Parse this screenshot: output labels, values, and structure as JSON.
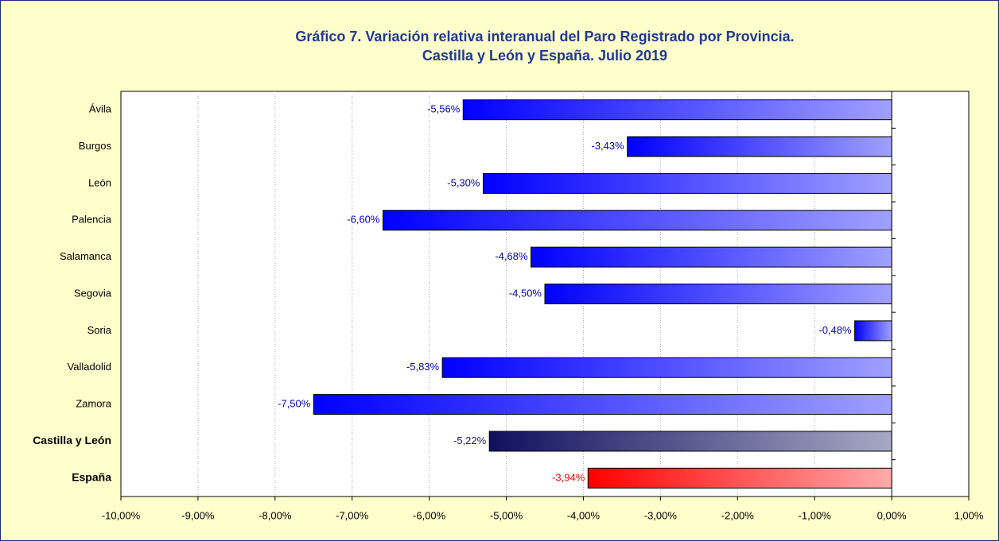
{
  "chart_data": {
    "type": "bar",
    "orientation": "horizontal",
    "title": [
      "Gráfico 7. Variación relativa interanual del Paro Registrado por Provincia.",
      "Castilla y León y España. Julio 2019"
    ],
    "categories": [
      "Ávila",
      "Burgos",
      "León",
      "Palencia",
      "Salamanca",
      "Segovia",
      "Soria",
      "Valladolid",
      "Zamora",
      "Castilla y León",
      "España"
    ],
    "values": [
      -5.56,
      -3.43,
      -5.3,
      -6.6,
      -4.68,
      -4.5,
      -0.48,
      -5.83,
      -7.5,
      -5.22,
      -3.94
    ],
    "value_labels": [
      "-5,56%",
      "-3,43%",
      "-5,30%",
      "-6,60%",
      "-4,68%",
      "-4,50%",
      "-0,48%",
      "-5,83%",
      "-7,50%",
      "-5,22%",
      "-3,94%"
    ],
    "colors": [
      "#0000ff",
      "#0000ff",
      "#0000ff",
      "#0000ff",
      "#0000ff",
      "#0000ff",
      "#0000ff",
      "#0000ff",
      "#0000ff",
      "#10105e",
      "#ff0000"
    ],
    "colors_light": [
      "#a0a0ff",
      "#a0a0ff",
      "#a0a0ff",
      "#a0a0ff",
      "#a0a0ff",
      "#a0a0ff",
      "#a0a0ff",
      "#a0a0ff",
      "#a0a0ff",
      "#a8a8c4",
      "#ffaaaa"
    ],
    "label_colors": [
      "#0000cc",
      "#0000cc",
      "#0000cc",
      "#0000cc",
      "#0000cc",
      "#0000cc",
      "#0000cc",
      "#0000cc",
      "#0000cc",
      "#1a1a6e",
      "#ff0000"
    ],
    "xlim": [
      -10,
      1
    ],
    "xticks": [
      {
        "value": -10,
        "label": "-10,00%"
      },
      {
        "value": -9,
        "label": "-9,00%"
      },
      {
        "value": -8,
        "label": "-8,00%"
      },
      {
        "value": -7,
        "label": "-7,00%"
      },
      {
        "value": -6,
        "label": "-6,00%"
      },
      {
        "value": -5,
        "label": "-5,00%"
      },
      {
        "value": -4,
        "label": "-4,00%"
      },
      {
        "value": -3,
        "label": "-3,00%"
      },
      {
        "value": -2,
        "label": "-2,00%"
      },
      {
        "value": -1,
        "label": "-1,00%"
      },
      {
        "value": 0,
        "label": "0,00%"
      },
      {
        "value": 1,
        "label": "1,00%"
      }
    ],
    "grid": true
  }
}
